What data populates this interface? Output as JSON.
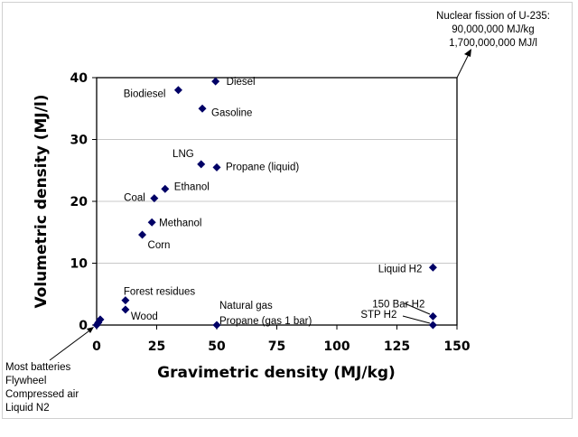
{
  "chart_data": {
    "type": "scatter",
    "title": "",
    "xlabel": "Gravimetric density (MJ/kg)",
    "ylabel": "Volumetric density (MJ/l)",
    "xlim": [
      0,
      150
    ],
    "ylim": [
      0,
      40
    ],
    "xticks": [
      "0",
      "25",
      "50",
      "75",
      "100",
      "125",
      "150"
    ],
    "yticks": [
      "0",
      "10",
      "20",
      "30",
      "40"
    ],
    "grid": "horizontal",
    "marker_color": "#000066",
    "points": [
      {
        "label": "Diesel",
        "x": 49.5,
        "y": 39.4
      },
      {
        "label": "Biodiesel",
        "x": 34,
        "y": 38
      },
      {
        "label": "Gasoline",
        "x": 44,
        "y": 35
      },
      {
        "label": "LNG",
        "x": 43.5,
        "y": 26
      },
      {
        "label": "Propane (liquid)",
        "x": 50,
        "y": 25.5
      },
      {
        "label": "Ethanol",
        "x": 28.5,
        "y": 22
      },
      {
        "label": "Coal",
        "x": 24,
        "y": 20.5
      },
      {
        "label": "Methanol",
        "x": 23,
        "y": 16.6
      },
      {
        "label": "Corn",
        "x": 19,
        "y": 14.6
      },
      {
        "label": "Liquid H2",
        "x": 140,
        "y": 9.3
      },
      {
        "label": "Forest residues",
        "x": 12,
        "y": 4
      },
      {
        "label": "Wood",
        "x": 12,
        "y": 2.5
      },
      {
        "label": "Natural gas",
        "x": 50,
        "y": 0
      },
      {
        "label": "150 Bar H2",
        "x": 140,
        "y": 1.4
      },
      {
        "label": "STP H2",
        "x": 140,
        "y": 0
      },
      {
        "label": "",
        "x": 0,
        "y": 0
      },
      {
        "label": "",
        "x": 0.7,
        "y": 0.4
      },
      {
        "label": "",
        "x": 1.5,
        "y": 0.9
      }
    ],
    "extra_labels": {
      "propane_gas": "Propane (gas 1 bar)",
      "bottom_left": [
        "Most batteries",
        "Flywheel",
        "Compressed air",
        "Liquid N2"
      ],
      "top_right": [
        "Nuclear fission of U-235:",
        "90,000,000 MJ/kg",
        "1,700,000,000 MJ/l"
      ]
    }
  }
}
